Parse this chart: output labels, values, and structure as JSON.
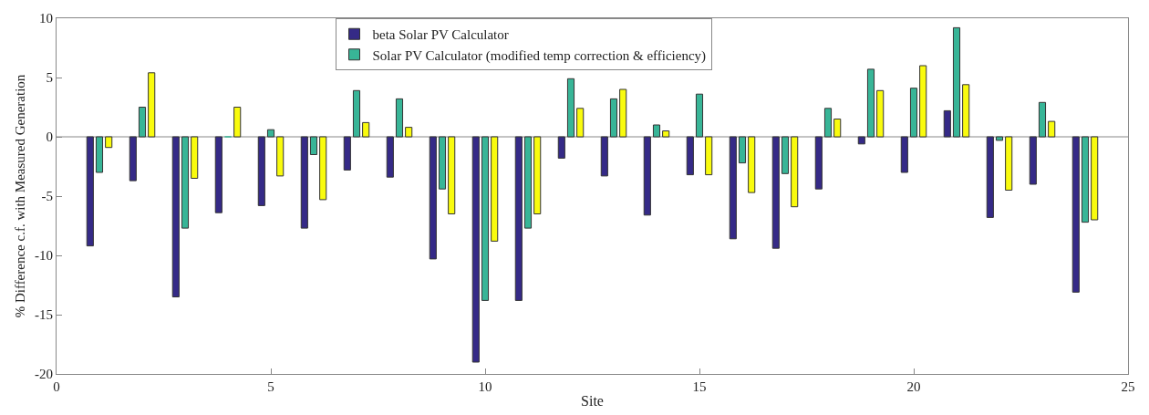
{
  "chart_data": {
    "type": "bar",
    "xlabel": "Site",
    "ylabel": "% Difference c.f. with Measured Generation",
    "x": [
      1,
      2,
      3,
      4,
      5,
      6,
      7,
      8,
      9,
      10,
      11,
      12,
      13,
      14,
      15,
      16,
      17,
      18,
      19,
      20,
      21,
      22,
      23,
      24
    ],
    "series": [
      {
        "name": "beta Solar PV Calculator",
        "color": "#352a87",
        "values": [
          -9.2,
          -3.7,
          -13.5,
          -6.4,
          -5.8,
          -7.7,
          -2.8,
          -3.4,
          -10.3,
          -19.0,
          -13.8,
          -1.8,
          -3.3,
          -6.6,
          -3.2,
          -8.6,
          -9.4,
          -4.4,
          -0.6,
          -3.0,
          2.2,
          -6.8,
          -4.0,
          -13.1
        ]
      },
      {
        "name": "Solar PV Calculator (modified temp correction & efficiency)",
        "color": "#38b597",
        "values": [
          -3.0,
          2.5,
          -7.7,
          0,
          0.6,
          -1.5,
          3.9,
          3.2,
          -4.4,
          -13.8,
          -7.7,
          4.9,
          3.2,
          1.0,
          3.6,
          -2.2,
          -3.1,
          2.4,
          5.7,
          4.1,
          9.2,
          -0.3,
          2.9,
          -7.2
        ]
      },
      {
        "color": "#f9fb0e",
        "values": [
          -0.9,
          5.4,
          -3.5,
          2.5,
          -3.3,
          -5.3,
          1.2,
          0.8,
          -6.5,
          -8.8,
          -6.5,
          2.4,
          4.0,
          0.5,
          -3.2,
          -4.7,
          -5.9,
          1.5,
          3.9,
          6.0,
          4.4,
          -4.5,
          1.3,
          -7.0
        ]
      }
    ],
    "xlim": [
      0,
      25
    ],
    "xticks": [
      0,
      5,
      10,
      15,
      20,
      25
    ],
    "ylim": [
      -20,
      10
    ],
    "yticks": [
      -20,
      -15,
      -10,
      -5,
      0,
      5,
      10
    ],
    "ref_lines": [
      {
        "axis": "y",
        "value": 0,
        "color": "#888888"
      }
    ],
    "grid": false,
    "legend": "top"
  }
}
